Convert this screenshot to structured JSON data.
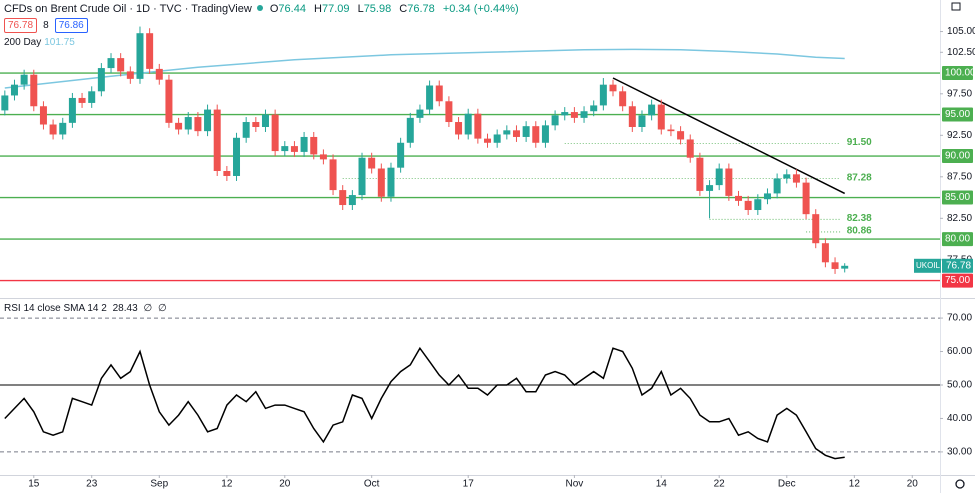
{
  "header": {
    "title": "CFDs on Brent Crude Oil · 1D · TVC · TradingView",
    "ohlc_labels": [
      "O",
      "H",
      "L",
      "C"
    ],
    "change": "+0.34 (+0.44%)",
    "bid": 76.78,
    "spread": 8,
    "ask": 76.86
  },
  "chart_data": [
    {
      "type": "candlestick",
      "symbol": "UKOIL",
      "up_color": "#26a69a",
      "down_color": "#ef5350",
      "x": [
        0,
        1,
        2,
        3,
        4,
        5,
        6,
        7,
        8,
        9,
        10,
        11,
        12,
        13,
        14,
        15,
        16,
        17,
        18,
        19,
        20,
        21,
        22,
        23,
        24,
        25,
        26,
        27,
        28,
        29,
        30,
        31,
        32,
        33,
        34,
        35,
        36,
        37,
        38,
        39,
        40,
        41,
        42,
        43,
        44,
        45,
        46,
        47,
        48,
        49,
        50,
        51,
        52,
        53,
        54,
        55,
        56,
        57,
        58,
        59,
        60,
        61,
        62,
        63,
        64,
        65,
        66,
        67,
        68,
        69,
        70,
        71,
        72,
        73,
        74,
        75,
        76,
        77,
        78,
        79,
        80,
        81,
        82,
        83,
        84,
        85,
        86,
        87
      ],
      "open": [
        95.5,
        97.3,
        98.6,
        99.8,
        96.0,
        93.8,
        92.6,
        94.0,
        97.0,
        96.4,
        97.8,
        100.6,
        101.8,
        100.2,
        99.3,
        104.8,
        100.5,
        99.2,
        94.0,
        93.2,
        94.7,
        93.0,
        95.6,
        88.2,
        87.6,
        92.2,
        94.1,
        93.5,
        95.0,
        90.6,
        91.2,
        90.5,
        92.3,
        90.2,
        89.6,
        85.9,
        84.1,
        85.3,
        89.8,
        88.5,
        85.1,
        88.6,
        91.6,
        94.6,
        95.6,
        98.5,
        96.6,
        94.1,
        92.6,
        95.1,
        92.1,
        91.6,
        92.6,
        93.1,
        92.3,
        93.6,
        91.6,
        93.7,
        94.9,
        95.3,
        94.6,
        95.4,
        96.1,
        98.6,
        97.8,
        96.0,
        93.5,
        94.9,
        96.2,
        93.2,
        93.0,
        92.0,
        89.8,
        85.8,
        86.5,
        88.5,
        85.2,
        84.6,
        83.5,
        84.8,
        85.5,
        87.3,
        87.8,
        86.8,
        83.0,
        79.5,
        77.2,
        76.44
      ],
      "high": [
        97.9,
        99.2,
        100.4,
        100.4,
        96.6,
        94.4,
        94.6,
        97.6,
        97.6,
        98.4,
        101.2,
        102.4,
        102.4,
        100.8,
        105.6,
        105.4,
        101.1,
        99.8,
        94.6,
        95.3,
        95.3,
        96.2,
        96.2,
        88.8,
        92.8,
        94.7,
        94.7,
        95.6,
        95.6,
        91.8,
        91.8,
        92.9,
        92.9,
        90.8,
        90.2,
        86.5,
        85.9,
        90.4,
        90.4,
        89.1,
        89.2,
        92.2,
        95.2,
        96.2,
        99.1,
        99.1,
        97.2,
        94.7,
        95.7,
        95.7,
        92.7,
        93.2,
        93.7,
        93.7,
        94.2,
        94.2,
        94.3,
        95.5,
        95.9,
        95.9,
        96.0,
        96.7,
        99.4,
        99.2,
        98.4,
        96.6,
        95.5,
        96.8,
        96.8,
        93.8,
        93.6,
        92.6,
        90.4,
        87.1,
        89.1,
        89.1,
        85.8,
        85.2,
        85.4,
        86.1,
        87.9,
        88.4,
        88.4,
        87.4,
        83.6,
        80.1,
        77.8,
        77.09
      ],
      "low": [
        94.9,
        96.7,
        98.0,
        95.4,
        93.2,
        92.0,
        92.0,
        93.4,
        95.8,
        95.8,
        97.2,
        100.0,
        99.6,
        98.7,
        98.7,
        99.9,
        98.6,
        93.4,
        92.6,
        92.6,
        92.4,
        92.4,
        87.6,
        87.0,
        87.0,
        91.6,
        92.9,
        92.9,
        90.0,
        90.0,
        89.9,
        89.9,
        89.6,
        89.0,
        85.3,
        83.5,
        83.5,
        84.7,
        87.9,
        84.5,
        84.5,
        88.0,
        91.0,
        94.0,
        95.0,
        96.0,
        93.5,
        92.0,
        92.0,
        91.5,
        91.0,
        91.0,
        92.0,
        91.7,
        91.7,
        91.0,
        91.0,
        93.1,
        94.3,
        94.0,
        94.0,
        94.8,
        95.5,
        97.2,
        95.4,
        92.9,
        92.9,
        94.3,
        92.6,
        92.4,
        91.4,
        89.2,
        85.2,
        82.5,
        85.9,
        84.6,
        84.0,
        82.9,
        82.9,
        84.2,
        84.9,
        86.7,
        86.2,
        82.4,
        78.9,
        76.6,
        75.8,
        75.98
      ],
      "close": [
        97.3,
        98.6,
        99.8,
        96.0,
        93.8,
        92.6,
        94.0,
        97.0,
        96.4,
        97.8,
        100.6,
        101.8,
        100.2,
        99.3,
        104.8,
        100.5,
        99.2,
        94.0,
        93.2,
        94.7,
        93.0,
        95.6,
        88.2,
        87.6,
        92.2,
        94.1,
        93.5,
        95.0,
        90.6,
        91.2,
        90.5,
        92.3,
        90.2,
        89.6,
        85.9,
        84.1,
        85.3,
        89.8,
        88.5,
        85.1,
        88.6,
        91.6,
        94.6,
        95.6,
        98.5,
        96.6,
        94.1,
        92.6,
        95.1,
        92.1,
        91.6,
        92.6,
        93.1,
        92.3,
        93.6,
        91.6,
        93.7,
        94.9,
        95.3,
        94.6,
        95.4,
        96.1,
        98.6,
        97.8,
        96.0,
        93.5,
        94.9,
        96.2,
        93.2,
        93.0,
        92.0,
        89.8,
        85.8,
        86.5,
        88.5,
        85.2,
        84.6,
        83.5,
        84.8,
        85.5,
        87.3,
        87.8,
        86.8,
        83.0,
        79.5,
        77.2,
        76.4,
        76.78
      ],
      "ma": {
        "name": "200 Day",
        "color": "#7cc7e0",
        "x": [
          0,
          10,
          20,
          30,
          40,
          50,
          60,
          65,
          70,
          75,
          80,
          84,
          87
        ],
        "values": [
          98.2,
          99.5,
          100.7,
          101.6,
          102.2,
          102.5,
          102.8,
          102.85,
          102.8,
          102.6,
          102.3,
          101.9,
          101.75
        ]
      },
      "trendline": {
        "color": "#000000",
        "x": [
          63,
          87
        ],
        "values": [
          99.4,
          85.5
        ]
      },
      "levels": [
        {
          "value": 100,
          "label": "100.00",
          "color": "#4caf50"
        },
        {
          "value": 95,
          "label": "95.00",
          "color": "#4caf50"
        },
        {
          "value": 90,
          "label": "90.00",
          "color": "#4caf50"
        },
        {
          "value": 85,
          "label": "85.00",
          "color": "#4caf50"
        },
        {
          "value": 80,
          "label": "80.00",
          "color": "#4caf50"
        },
        {
          "value": 75,
          "label": "75.00",
          "color": "#f23645"
        }
      ],
      "dotted_levels": [
        {
          "value": 91.5,
          "label": "91.50",
          "x0": 58
        },
        {
          "value": 87.28,
          "label": "87.28",
          "x0": 35
        },
        {
          "value": 82.38,
          "label": "82.38",
          "x0": 73
        },
        {
          "value": 80.86,
          "label": "80.86",
          "x0": 83
        }
      ],
      "dotted_color": "#4caf50",
      "xlim": [
        -0.5,
        94.8
      ],
      "ylim": [
        72.9,
        108.8
      ],
      "yticks": [
        {
          "value": 105,
          "label": "105.00"
        },
        {
          "value": 102.5,
          "label": "102.50"
        },
        {
          "value": 97.5,
          "label": "97.50"
        },
        {
          "value": 92.5,
          "label": "92.50"
        },
        {
          "value": 87.5,
          "label": "87.50"
        },
        {
          "value": 82.5,
          "label": "82.50"
        },
        {
          "value": 77.5,
          "label": "77.50"
        }
      ],
      "xticks": [
        {
          "value": 3,
          "label": "15"
        },
        {
          "value": 9,
          "label": "23"
        },
        {
          "value": 16,
          "label": "Sep"
        },
        {
          "value": 23,
          "label": "12"
        },
        {
          "value": 29,
          "label": "20"
        },
        {
          "value": 38,
          "label": "Oct"
        },
        {
          "value": 48,
          "label": "17"
        },
        {
          "value": 59,
          "label": "Nov"
        },
        {
          "value": 68,
          "label": "14"
        },
        {
          "value": 74,
          "label": "22"
        },
        {
          "value": 81,
          "label": "Dec"
        },
        {
          "value": 88,
          "label": "12"
        },
        {
          "value": 94,
          "label": "20"
        }
      ]
    },
    {
      "type": "line",
      "title": "RSI 14 close SMA 14 2",
      "markers": [
        "∅",
        "∅"
      ],
      "color": "#000000",
      "values": [
        40,
        43,
        46,
        42,
        36,
        35,
        36,
        46,
        45,
        44,
        52,
        56,
        52,
        54,
        60,
        50,
        42,
        38,
        41,
        45,
        41,
        36,
        37,
        44,
        47,
        45,
        48,
        43,
        44,
        44,
        43,
        42,
        37,
        33,
        38,
        39,
        47,
        46,
        40,
        46,
        51,
        54,
        56,
        61,
        57,
        53,
        50,
        53,
        49,
        49,
        47,
        50,
        50,
        52,
        48,
        48,
        53,
        54,
        53,
        50,
        52,
        54,
        52,
        61,
        60,
        55,
        47,
        49,
        54,
        47,
        49,
        46,
        41,
        39,
        39,
        40,
        35,
        36,
        34,
        33,
        41,
        43,
        41,
        36,
        31,
        29,
        28,
        28.43
      ],
      "ylim": [
        23.1,
        75.4
      ],
      "yticks": [
        {
          "value": 70,
          "label": "70.00"
        },
        {
          "value": 60,
          "label": "60.00"
        },
        {
          "value": 50,
          "label": "50.00"
        },
        {
          "value": 40,
          "label": "40.00"
        },
        {
          "value": 30,
          "label": "30.00"
        }
      ],
      "levels": [
        {
          "value": 70,
          "style": "dashed"
        },
        {
          "value": 50,
          "style": "solid"
        },
        {
          "value": 30,
          "style": "dashed"
        }
      ]
    }
  ]
}
